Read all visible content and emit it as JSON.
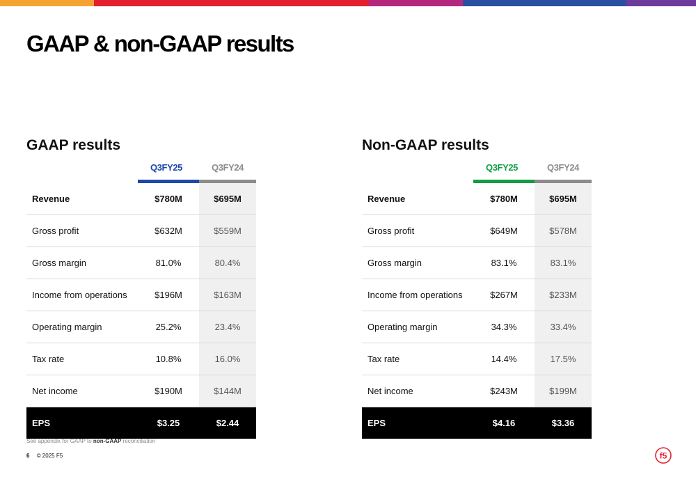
{
  "colors": {
    "topbar": [
      "#f4a332",
      "#e4202e",
      "#e4202e",
      "#b5287f",
      "#2a4fa0",
      "#6e3a9c"
    ],
    "gaap_accent": "#1f48a8",
    "nongaap_accent": "#129c48",
    "prev_accent": "#8c8c8c",
    "brand_red": "#e4202e"
  },
  "title": "GAAP & non-GAAP results",
  "gaap": {
    "title": "GAAP results",
    "col_current": "Q3FY25",
    "col_prior": "Q3FY24",
    "rows": [
      {
        "label": "Revenue",
        "current": "$780M",
        "prior": "$695M"
      },
      {
        "label": "Gross profit",
        "current": "$632M",
        "prior": "$559M"
      },
      {
        "label": "Gross margin",
        "current": "81.0%",
        "prior": "80.4%"
      },
      {
        "label": "Income from operations",
        "current": "$196M",
        "prior": "$163M"
      },
      {
        "label": "Operating margin",
        "current": "25.2%",
        "prior": "23.4%"
      },
      {
        "label": "Tax rate",
        "current": "10.8%",
        "prior": "16.0%"
      },
      {
        "label": "Net income",
        "current": "$190M",
        "prior": "$144M"
      },
      {
        "label": "EPS",
        "current": "$3.25",
        "prior": "$2.44"
      }
    ]
  },
  "nongaap": {
    "title": "Non-GAAP results",
    "col_current": "Q3FY25",
    "col_prior": "Q3FY24",
    "rows": [
      {
        "label": "Revenue",
        "current": "$780M",
        "prior": "$695M"
      },
      {
        "label": "Gross profit",
        "current": "$649M",
        "prior": "$578M"
      },
      {
        "label": "Gross margin",
        "current": "83.1%",
        "prior": "83.1%"
      },
      {
        "label": "Income from operations",
        "current": "$267M",
        "prior": "$233M"
      },
      {
        "label": "Operating margin",
        "current": "34.3%",
        "prior": "33.4%"
      },
      {
        "label": "Tax rate",
        "current": "14.4%",
        "prior": "17.5%"
      },
      {
        "label": "Net income",
        "current": "$243M",
        "prior": "$199M"
      },
      {
        "label": "EPS",
        "current": "$4.16",
        "prior": "$3.36"
      }
    ]
  },
  "footnote": {
    "prefix": "See appendix for GAAP to ",
    "emphasis": "non-GAAP",
    "suffix": " reconciliation"
  },
  "footer": {
    "page_number": "6",
    "copyright": "© 2025 F5"
  },
  "logo": {
    "text": "f5",
    "icon": "f5-logo-icon"
  }
}
